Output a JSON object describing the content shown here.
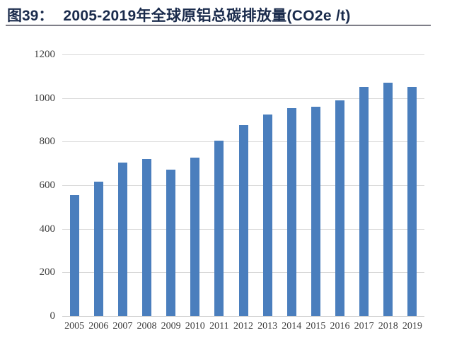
{
  "header": {
    "figure_label": "图39：",
    "title": "2005-2019年全球原铝总碳排放量(CO2e /t)"
  },
  "chart_data": {
    "type": "bar",
    "title": "2005-2019年全球原铝总碳排放量(CO2e /t)",
    "categories": [
      "2005",
      "2006",
      "2007",
      "2008",
      "2009",
      "2010",
      "2011",
      "2012",
      "2013",
      "2014",
      "2015",
      "2016",
      "2017",
      "2018",
      "2019"
    ],
    "values": [
      555,
      615,
      705,
      720,
      670,
      725,
      805,
      875,
      925,
      955,
      960,
      990,
      1050,
      1070,
      1050
    ],
    "xlabel": "",
    "ylabel": "",
    "ylim": [
      0,
      1200
    ],
    "yticks": [
      0,
      200,
      400,
      600,
      800,
      1000,
      1200
    ],
    "grid": true,
    "legend_position": "none",
    "bar_color": "#4a7ebd",
    "gridline_color": "#d9d9d9",
    "axis_label_color": "#404040",
    "title_color": "#1a2b4c"
  }
}
